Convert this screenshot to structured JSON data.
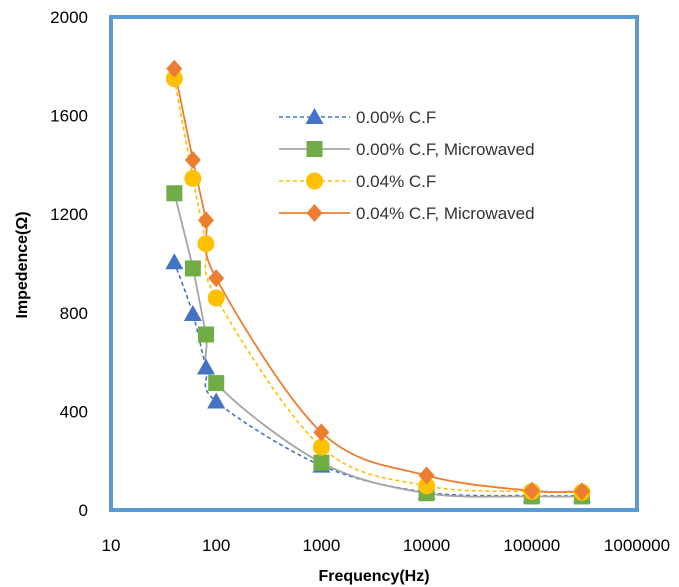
{
  "chart_data": {
    "type": "scatter",
    "x_scale": "log",
    "xlim": [
      10,
      1000000
    ],
    "ylim": [
      0,
      2000
    ],
    "grid": false,
    "legend_position": "top-right",
    "xlabel": "Frequency(Hz)",
    "ylabel": "Impedence(Ω)",
    "x_ticks": [
      "10",
      "100",
      "1000",
      "10000",
      "100000",
      "1000000"
    ],
    "y_ticks": [
      "0",
      "400",
      "800",
      "1200",
      "1600",
      "2000"
    ],
    "series": [
      {
        "name": "0.00% C.F",
        "color": "#4472c4",
        "marker": "triangle",
        "line": "dashed",
        "x": [
          40,
          60,
          80,
          100,
          1000,
          10000,
          100000,
          300000
        ],
        "y": [
          1005,
          795,
          578,
          440,
          180,
          72,
          58,
          58
        ]
      },
      {
        "name": "0.00% C.F, Microwaved",
        "color": "#70ad47",
        "line_color": "#a5a5a5",
        "marker": "square",
        "line": "solid",
        "x": [
          40,
          60,
          80,
          100,
          1000,
          10000,
          100000,
          300000
        ],
        "y": [
          1285,
          980,
          712,
          515,
          192,
          68,
          55,
          55
        ]
      },
      {
        "name": "0.04% C.F",
        "color": "#ffc000",
        "marker": "circle",
        "line": "dashed",
        "x": [
          40,
          60,
          80,
          100,
          1000,
          10000,
          100000,
          300000
        ],
        "y": [
          1750,
          1345,
          1080,
          860,
          255,
          98,
          75,
          72
        ]
      },
      {
        "name": "0.04% C.F, Microwaved",
        "color": "#ed7d31",
        "marker": "diamond",
        "line": "solid",
        "x": [
          40,
          60,
          80,
          100,
          1000,
          10000,
          100000,
          300000
        ],
        "y": [
          1790,
          1420,
          1175,
          940,
          315,
          140,
          78,
          76
        ]
      }
    ]
  }
}
